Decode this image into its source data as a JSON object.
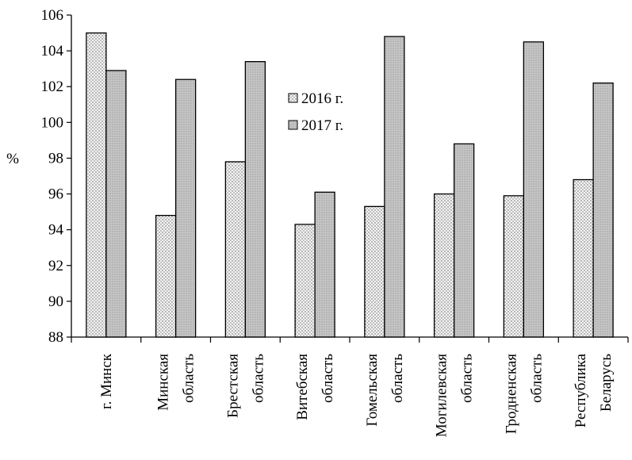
{
  "chart_data": {
    "type": "bar",
    "title": "",
    "xlabel": "",
    "ylabel": "%",
    "ylim": [
      88,
      106
    ],
    "ytick_step": 2,
    "grid": false,
    "legend_position": "center",
    "categories": [
      [
        "г. Минск"
      ],
      [
        "Минская",
        "область"
      ],
      [
        "Брестская",
        "область"
      ],
      [
        "Витебская",
        "область"
      ],
      [
        "Гомельская",
        "область"
      ],
      [
        "Могилевская",
        "область"
      ],
      [
        "Гродненская",
        "область"
      ],
      [
        "Республика",
        "Беларусь"
      ]
    ],
    "series": [
      {
        "name": "2016 г.",
        "pattern": "dots",
        "color": "#ececec",
        "values": [
          105.0,
          94.8,
          97.8,
          94.3,
          95.3,
          96.0,
          95.9,
          96.8
        ]
      },
      {
        "name": "2017 г.",
        "pattern": "gray",
        "color": "#bdbdbd",
        "values": [
          102.9,
          102.4,
          103.4,
          96.1,
          104.8,
          98.8,
          104.5,
          102.2
        ]
      }
    ]
  }
}
